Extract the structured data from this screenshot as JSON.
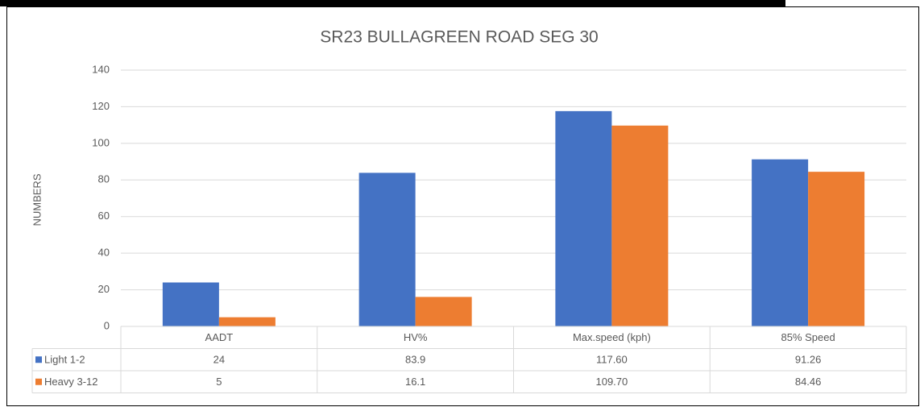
{
  "chart_data": {
    "type": "bar",
    "title": "SR23 BULLAGREEN ROAD SEG 30",
    "y_label": "NUMBERS",
    "categories": [
      "AADT",
      "HV%",
      "Max.speed (kph)",
      "85% Speed"
    ],
    "series": [
      {
        "name": "Light 1-2",
        "color": "#4472c4",
        "values": [
          24,
          83.9,
          117.6,
          91.26
        ],
        "value_labels": [
          "24",
          "83.9",
          "117.60",
          "91.26"
        ]
      },
      {
        "name": "Heavy 3-12",
        "color": "#ed7d31",
        "values": [
          5,
          16.1,
          109.7,
          84.46
        ],
        "value_labels": [
          "5",
          "16.1",
          "109.70",
          "84.46"
        ]
      }
    ],
    "ylim": [
      0,
      140
    ],
    "yticks": [
      0,
      20,
      40,
      60,
      80,
      100,
      120,
      140
    ],
    "grid": true
  }
}
